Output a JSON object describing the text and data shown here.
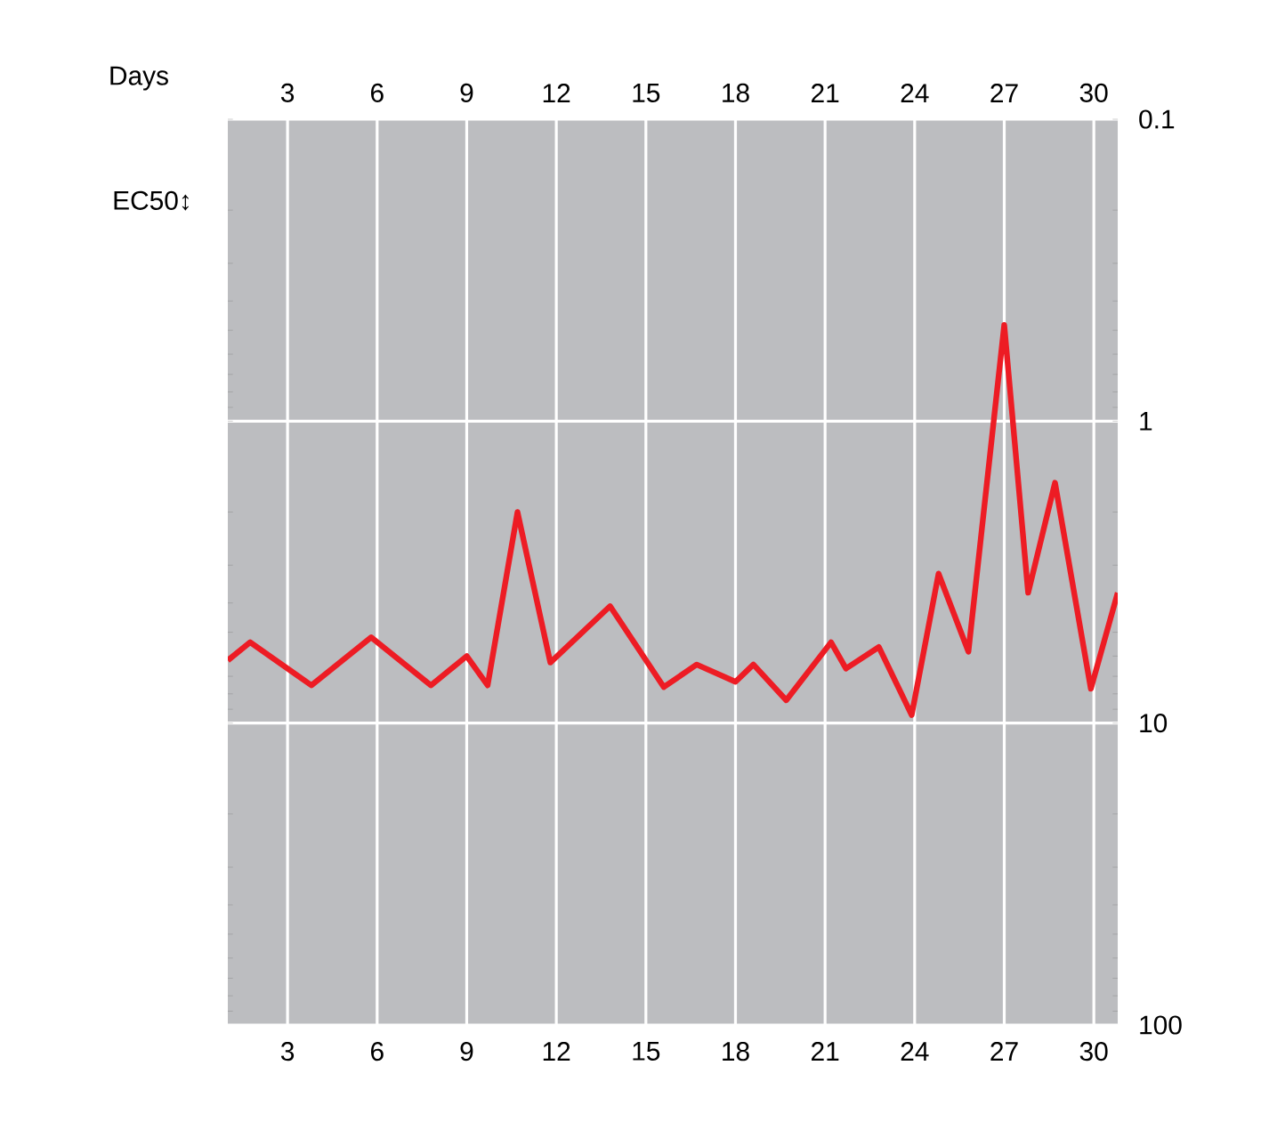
{
  "chart_data": {
    "type": "line",
    "xlabel": "Days",
    "ylabel": "EC50↕",
    "x": [
      1,
      1.75,
      3.8,
      5.8,
      7.8,
      9,
      9.7,
      10.7,
      11.8,
      13.8,
      15.6,
      16.7,
      18,
      18.6,
      19.7,
      21.2,
      21.7,
      22.8,
      23.9,
      24.8,
      25.8,
      27,
      27.8,
      28.7,
      29.9,
      30.8
    ],
    "series": [
      {
        "color": "#ed1c24",
        "values": [
          6.2,
          5.4,
          7.5,
          5.2,
          7.5,
          6.0,
          7.5,
          2.0,
          6.3,
          4.1,
          7.6,
          6.4,
          7.3,
          6.4,
          8.4,
          5.4,
          6.6,
          5.6,
          9.4,
          3.2,
          5.8,
          0.48,
          3.7,
          1.6,
          7.7,
          3.7
        ]
      }
    ],
    "xlim": [
      1,
      30.8
    ],
    "xticks": [
      3,
      6,
      9,
      12,
      15,
      18,
      21,
      24,
      27,
      30
    ],
    "x2lim": [
      1,
      30.8
    ],
    "x2ticks": [
      3,
      6,
      9,
      12,
      15,
      18,
      21,
      24,
      27,
      30
    ],
    "ylim": [
      100,
      0.1
    ],
    "yticks": [
      0.1,
      1,
      10,
      100
    ],
    "log": "y",
    "grid": true
  }
}
